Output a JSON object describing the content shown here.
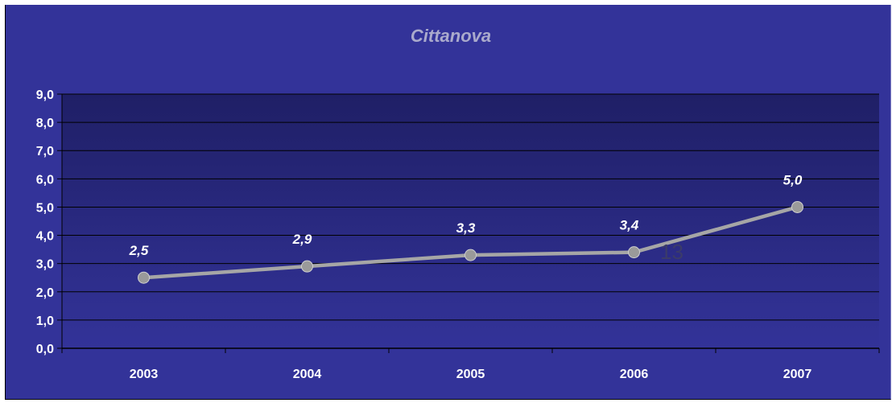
{
  "chart_data": {
    "type": "line",
    "title": "Cittanova",
    "categories": [
      "2003",
      "2004",
      "2005",
      "2006",
      "2007"
    ],
    "values": [
      2.5,
      2.9,
      3.3,
      3.4,
      5.0
    ],
    "data_labels": [
      "2,5",
      "2,9",
      "3,3",
      "3,4",
      "5,0"
    ],
    "ylim": [
      0,
      9
    ],
    "yticks": [
      "0,0",
      "1,0",
      "2,0",
      "3,0",
      "4,0",
      "5,0",
      "6,0",
      "7,0",
      "8,0",
      "9,0"
    ],
    "xlabel": "",
    "ylabel": "",
    "grid": true,
    "legend": "none",
    "annotation": "13",
    "colors": {
      "background": "#333399",
      "plot_top": "#1f1f66",
      "plot_bottom": "#333399",
      "line": "#a6a6a6",
      "marker": "#9a9a9a",
      "gridline": "#000000",
      "text": "#ffffff",
      "title": "#aaaacc"
    }
  }
}
